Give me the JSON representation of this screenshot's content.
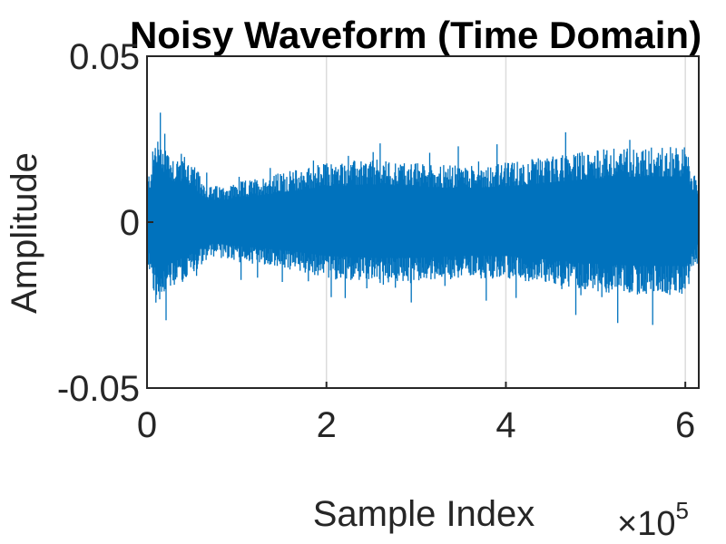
{
  "chart_data": {
    "type": "line",
    "title": "Noisy Waveform (Time Domain)",
    "xlabel": "Sample Index",
    "ylabel": "Amplitude",
    "x_multiplier_label": "×10",
    "x_multiplier_exponent": "5",
    "xlim": [
      0,
      615000
    ],
    "ylim": [
      -0.05,
      0.05
    ],
    "x_ticks": [
      0,
      200000,
      400000,
      600000
    ],
    "x_tick_labels": [
      "0",
      "2",
      "4",
      "6"
    ],
    "y_ticks": [
      -0.05,
      0,
      0.05
    ],
    "y_tick_labels": [
      "-0.05",
      "0",
      "0.05"
    ],
    "grid": "vertical",
    "series": [
      {
        "color": "#0072BD",
        "x": [
          0,
          10000,
          20000,
          30000,
          40000,
          50000,
          60000,
          70000,
          80000,
          100000,
          150000,
          200000,
          250000,
          300000,
          350000,
          400000,
          450000,
          500000,
          550000,
          600000,
          615000
        ],
        "envelope_upper": [
          0.012,
          0.027,
          0.025,
          0.02,
          0.021,
          0.018,
          0.014,
          0.011,
          0.011,
          0.012,
          0.015,
          0.018,
          0.019,
          0.018,
          0.017,
          0.018,
          0.02,
          0.022,
          0.023,
          0.023,
          0.01
        ],
        "envelope_lower": [
          -0.012,
          -0.025,
          -0.022,
          -0.02,
          -0.018,
          -0.016,
          -0.013,
          -0.011,
          -0.011,
          -0.012,
          -0.014,
          -0.017,
          -0.018,
          -0.018,
          -0.017,
          -0.017,
          -0.019,
          -0.021,
          -0.022,
          -0.022,
          -0.01
        ],
        "peaks_max": 0.033,
        "peaks_min": -0.034
      }
    ]
  }
}
